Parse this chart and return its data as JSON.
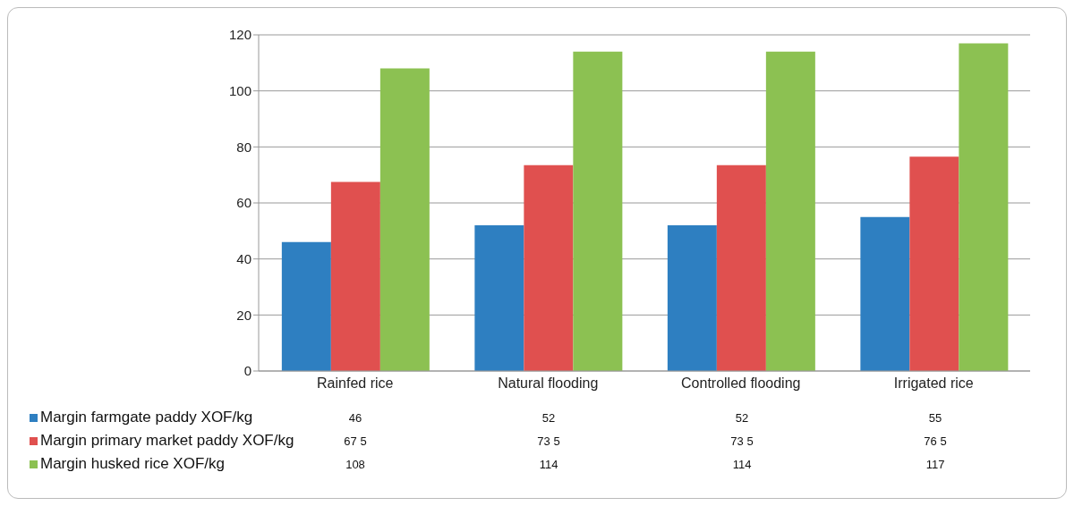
{
  "chart_data": {
    "type": "bar",
    "categories": [
      "Rainfed rice",
      "Natural flooding",
      "Controlled flooding",
      "Irrigated rice"
    ],
    "series": [
      {
        "name": "Margin farmgate  paddy XOF/kg",
        "color": "#2e7fc1",
        "values": [
          46,
          52,
          52,
          55
        ],
        "value_labels": [
          "46",
          "52",
          "52",
          "55"
        ]
      },
      {
        "name": "Margin primary market  paddy XOF/kg",
        "color": "#e0504f",
        "values": [
          67.5,
          73.5,
          73.5,
          76.5
        ],
        "value_labels": [
          "67 5",
          "73 5",
          "73 5",
          "76 5"
        ]
      },
      {
        "name": "Margin husked rice XOF/kg",
        "color": "#8cc152",
        "values": [
          108,
          114,
          114,
          117
        ],
        "value_labels": [
          "108",
          "114",
          "114",
          "117"
        ]
      }
    ],
    "ylim": [
      0,
      120
    ],
    "yticks": [
      0,
      20,
      40,
      60,
      80,
      100,
      120
    ],
    "grid": "y",
    "legend": "bottom"
  }
}
